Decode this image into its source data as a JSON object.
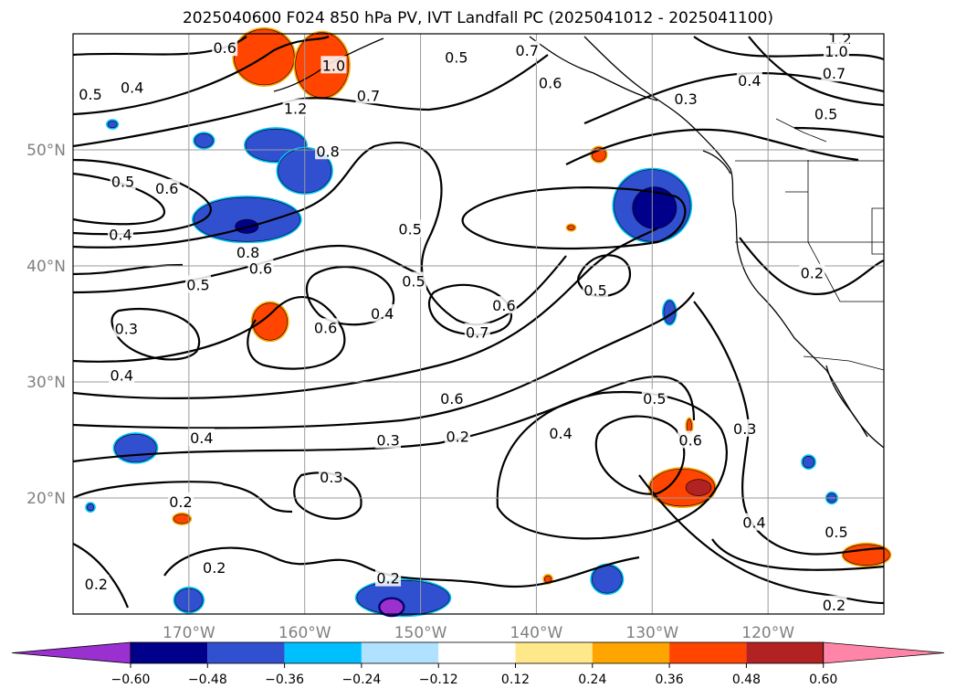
{
  "title": "2025040600 F024 850 hPa PV, IVT Landfall PC (2025041012 - 2025041100)",
  "chart_data": {
    "type": "heatmap",
    "title": "2025040600 F024 850 hPa PV, IVT Landfall PC (2025041012 - 2025041100)",
    "lon_ticks": [
      {
        "lon": -170,
        "label": "170°W"
      },
      {
        "lon": -160,
        "label": "160°W"
      },
      {
        "lon": -150,
        "label": "150°W"
      },
      {
        "lon": -140,
        "label": "140°W"
      },
      {
        "lon": -130,
        "label": "130°W"
      },
      {
        "lon": -120,
        "label": "120°W"
      }
    ],
    "lat_ticks": [
      {
        "lat": 20,
        "label": "20°N"
      },
      {
        "lat": 30,
        "label": "30°N"
      },
      {
        "lat": 40,
        "label": "40°N"
      },
      {
        "lat": 50,
        "label": "50°N"
      }
    ],
    "lon_range": [
      -180,
      -110
    ],
    "lat_range": [
      10,
      60
    ],
    "grid": true,
    "colorbar": {
      "position": "bottom",
      "ticks": [
        "−0.60",
        "−0.48",
        "−0.36",
        "−0.24",
        "−0.12",
        "0.12",
        "0.24",
        "0.36",
        "0.48",
        "0.60"
      ],
      "colors": [
        "#9b30d0",
        "#00008b",
        "#3050d0",
        "#00bfff",
        "#b0e2ff",
        "#ffffff",
        "#ffe88a",
        "#ffa500",
        "#ff4500",
        "#b22222",
        "#ff85a8"
      ]
    },
    "contour_labels": [
      {
        "text": "0.6",
        "lon": -166.9,
        "lat": 58.8
      },
      {
        "text": "0.4",
        "lon": -174.9,
        "lat": 55.4
      },
      {
        "text": "0.5",
        "lon": -178.5,
        "lat": 54.8
      },
      {
        "text": "1.0",
        "lon": -157.5,
        "lat": 57.3
      },
      {
        "text": "0.7",
        "lon": -154.5,
        "lat": 54.7
      },
      {
        "text": "1.2",
        "lon": -160.8,
        "lat": 53.6
      },
      {
        "text": "0.8",
        "lon": -158.0,
        "lat": 49.9
      },
      {
        "text": "0.5",
        "lon": -146.9,
        "lat": 58.0
      },
      {
        "text": "0.7",
        "lon": -140.8,
        "lat": 58.6
      },
      {
        "text": "0.6",
        "lon": -138.8,
        "lat": 55.8
      },
      {
        "text": "0.3",
        "lon": -127.1,
        "lat": 54.4
      },
      {
        "text": "1.2",
        "lon": -113.8,
        "lat": 59.6
      },
      {
        "text": "1.0",
        "lon": -114.1,
        "lat": 58.5
      },
      {
        "text": "0.7",
        "lon": -114.3,
        "lat": 56.6
      },
      {
        "text": "0.4",
        "lon": -121.6,
        "lat": 56.0
      },
      {
        "text": "0.5",
        "lon": -115.0,
        "lat": 53.1
      },
      {
        "text": "0.5",
        "lon": -175.7,
        "lat": 47.3
      },
      {
        "text": "0.6",
        "lon": -171.9,
        "lat": 46.7
      },
      {
        "text": "0.4",
        "lon": -175.9,
        "lat": 42.7
      },
      {
        "text": "0.8",
        "lon": -164.9,
        "lat": 41.2
      },
      {
        "text": "0.6",
        "lon": -163.8,
        "lat": 39.8
      },
      {
        "text": "0.5",
        "lon": -169.2,
        "lat": 38.4
      },
      {
        "text": "0.5",
        "lon": -150.9,
        "lat": 43.2
      },
      {
        "text": "0.5",
        "lon": -150.6,
        "lat": 38.7
      },
      {
        "text": "0.4",
        "lon": -153.3,
        "lat": 35.9
      },
      {
        "text": "0.6",
        "lon": -142.8,
        "lat": 36.6
      },
      {
        "text": "0.7",
        "lon": -145.1,
        "lat": 34.3
      },
      {
        "text": "0.5",
        "lon": -134.9,
        "lat": 37.9
      },
      {
        "text": "0.2",
        "lon": -116.2,
        "lat": 39.4
      },
      {
        "text": "0.3",
        "lon": -175.4,
        "lat": 34.6
      },
      {
        "text": "0.4",
        "lon": -175.8,
        "lat": 30.6
      },
      {
        "text": "0.6",
        "lon": -158.2,
        "lat": 34.7
      },
      {
        "text": "0.6",
        "lon": -147.3,
        "lat": 28.6
      },
      {
        "text": "0.5",
        "lon": -129.8,
        "lat": 28.6
      },
      {
        "text": "0.4",
        "lon": -168.9,
        "lat": 25.2
      },
      {
        "text": "0.3",
        "lon": -152.8,
        "lat": 25.0
      },
      {
        "text": "0.2",
        "lon": -146.8,
        "lat": 25.3
      },
      {
        "text": "0.4",
        "lon": -137.9,
        "lat": 25.6
      },
      {
        "text": "0.6",
        "lon": -126.7,
        "lat": 25.0
      },
      {
        "text": "0.3",
        "lon": -122.0,
        "lat": 26.0
      },
      {
        "text": "0.3",
        "lon": -157.7,
        "lat": 21.8
      },
      {
        "text": "0.2",
        "lon": -170.7,
        "lat": 19.7
      },
      {
        "text": "0.4",
        "lon": -121.2,
        "lat": 17.9
      },
      {
        "text": "0.5",
        "lon": -114.1,
        "lat": 17.1
      },
      {
        "text": "0.2",
        "lon": -167.8,
        "lat": 14.0
      },
      {
        "text": "0.2",
        "lon": -178.0,
        "lat": 12.6
      },
      {
        "text": "0.2",
        "lon": -152.8,
        "lat": 13.1
      },
      {
        "text": "0.2",
        "lon": -114.3,
        "lat": 10.8
      }
    ],
    "shaded_regions": [
      {
        "lon": -163.5,
        "lat": 58.0,
        "rx": 2.6,
        "ry": 2.4,
        "color": "#ff4500",
        "edge": "#ffa500"
      },
      {
        "lon": -158.5,
        "lat": 57.3,
        "rx": 2.3,
        "ry": 2.8,
        "color": "#ff4500",
        "edge": "#ffa500"
      },
      {
        "lon": -162.5,
        "lat": 50.4,
        "rx": 2.6,
        "ry": 1.4,
        "color": "#3050d0",
        "edge": "#00bfff"
      },
      {
        "lon": -160.0,
        "lat": 48.2,
        "rx": 2.3,
        "ry": 1.9,
        "color": "#3050d0",
        "edge": "#00bfff"
      },
      {
        "lon": -165.0,
        "lat": 44.0,
        "rx": 4.6,
        "ry": 1.9,
        "color": "#3050d0",
        "edge": "#00bfff"
      },
      {
        "lon": -165.0,
        "lat": 43.4,
        "rx": 1.0,
        "ry": 0.6,
        "color": "#00008b",
        "edge": "#3050d0"
      },
      {
        "lon": -168.7,
        "lat": 50.8,
        "rx": 0.8,
        "ry": 0.6,
        "color": "#3050d0",
        "edge": "#00bfff"
      },
      {
        "lon": -163.0,
        "lat": 35.2,
        "rx": 1.5,
        "ry": 1.6,
        "color": "#ff4500",
        "edge": "#ffa500"
      },
      {
        "lon": -130.0,
        "lat": 45.2,
        "rx": 3.3,
        "ry": 3.1,
        "color": "#3050d0",
        "edge": "#00bfff"
      },
      {
        "lon": -129.8,
        "lat": 45.0,
        "rx": 1.9,
        "ry": 1.8,
        "color": "#00008b",
        "edge": "#3050d0"
      },
      {
        "lon": -127.4,
        "lat": 20.9,
        "rx": 2.8,
        "ry": 1.6,
        "color": "#ff4500",
        "edge": "#ffa500"
      },
      {
        "lon": -126.0,
        "lat": 20.9,
        "rx": 1.1,
        "ry": 0.7,
        "color": "#b22222",
        "edge": "#ff4500"
      },
      {
        "lon": -174.6,
        "lat": 24.3,
        "rx": 1.8,
        "ry": 1.2,
        "color": "#3050d0",
        "edge": "#00bfff"
      },
      {
        "lon": -151.5,
        "lat": 11.4,
        "rx": 4.0,
        "ry": 1.5,
        "color": "#3050d0",
        "edge": "#00bfff"
      },
      {
        "lon": -152.5,
        "lat": 10.6,
        "rx": 1.0,
        "ry": 0.7,
        "color": "#9b30d0",
        "edge": "#00008b"
      },
      {
        "lon": -133.9,
        "lat": 13.0,
        "rx": 1.3,
        "ry": 1.2,
        "color": "#3050d0",
        "edge": "#00bfff"
      },
      {
        "lon": -170.0,
        "lat": 11.2,
        "rx": 1.2,
        "ry": 1.0,
        "color": "#3050d0",
        "edge": "#00bfff"
      },
      {
        "lon": -111.5,
        "lat": 15.1,
        "rx": 2.0,
        "ry": 0.9,
        "color": "#ff4500",
        "edge": "#ffa500"
      },
      {
        "lon": -134.6,
        "lat": 49.6,
        "rx": 0.6,
        "ry": 0.6,
        "color": "#ff4500",
        "edge": "#ffa500"
      },
      {
        "lon": -128.5,
        "lat": 36.0,
        "rx": 0.5,
        "ry": 1.0,
        "color": "#3050d0",
        "edge": "#00bfff"
      },
      {
        "lon": -116.5,
        "lat": 23.1,
        "rx": 0.5,
        "ry": 0.5,
        "color": "#3050d0",
        "edge": "#00bfff"
      },
      {
        "lon": -114.5,
        "lat": 20.0,
        "rx": 0.4,
        "ry": 0.4,
        "color": "#3050d0",
        "edge": "#00bfff"
      },
      {
        "lon": -170.6,
        "lat": 18.2,
        "rx": 0.7,
        "ry": 0.4,
        "color": "#ff4500",
        "edge": "#ffa500"
      },
      {
        "lon": -178.5,
        "lat": 19.2,
        "rx": 0.3,
        "ry": 0.3,
        "color": "#3050d0",
        "edge": "#00bfff"
      },
      {
        "lon": -176.6,
        "lat": 52.2,
        "rx": 0.4,
        "ry": 0.3,
        "color": "#3050d0",
        "edge": "#00bfff"
      },
      {
        "lon": -126.8,
        "lat": 26.2,
        "rx": 0.2,
        "ry": 0.6,
        "color": "#ff4500",
        "edge": "#ffa500"
      },
      {
        "lon": -137.0,
        "lat": 43.3,
        "rx": 0.3,
        "ry": 0.2,
        "color": "#ff4500",
        "edge": "#ffa500"
      },
      {
        "lon": -139.0,
        "lat": 13.0,
        "rx": 0.3,
        "ry": 0.3,
        "color": "#ff4500",
        "edge": "#ffa500"
      }
    ]
  }
}
